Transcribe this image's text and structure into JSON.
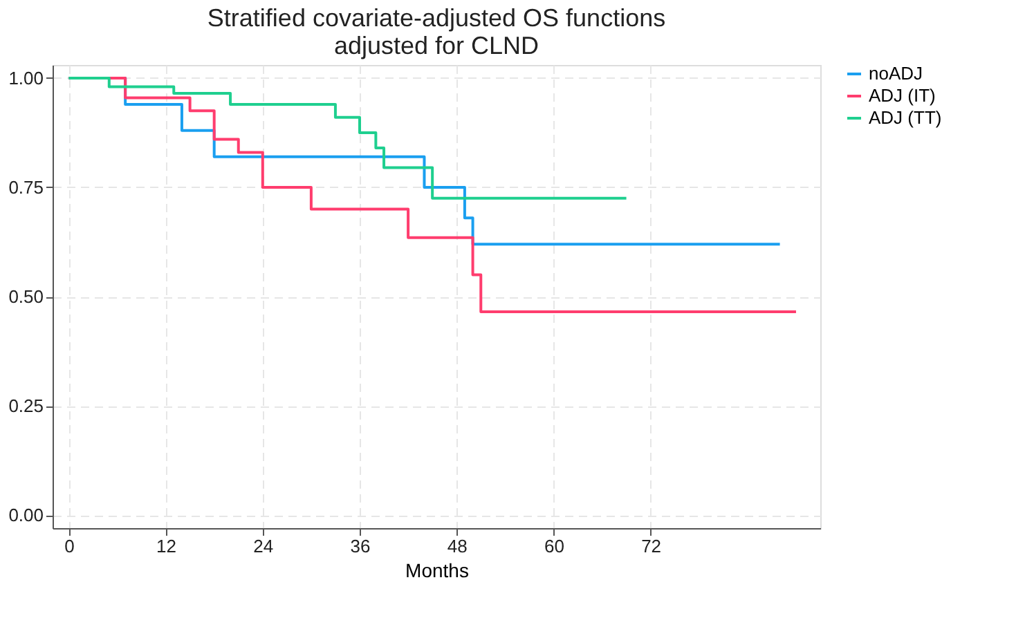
{
  "chart_data": {
    "type": "step",
    "title": [
      "Stratified covariate-adjusted OS functions",
      "adjusted for CLND"
    ],
    "xlabel": "Months",
    "xlim": [
      -2,
      93
    ],
    "xticks": [
      0,
      12,
      24,
      36,
      48,
      60,
      72
    ],
    "ylim": [
      -0.03,
      1.03
    ],
    "yticks": [
      {
        "value": 0,
        "label": "0.00"
      },
      {
        "value": 0.25,
        "label": "0.25"
      },
      {
        "value": 0.5,
        "label": "0.50"
      },
      {
        "value": 0.75,
        "label": "0.75"
      },
      {
        "value": 1,
        "label": "1.00"
      }
    ],
    "grid": true,
    "legend": "right",
    "line_style": "solid",
    "marker": "none",
    "series": [
      {
        "name": "noADJ",
        "color": "#1a9ff0",
        "x": [
          0,
          7,
          14,
          18,
          44,
          49,
          50,
          88
        ],
        "values": [
          1.0,
          0.94,
          0.88,
          0.82,
          0.75,
          0.68,
          0.62,
          0.62
        ]
      },
      {
        "name": "ADJ (IT)",
        "color": "#ff3d6e",
        "x": [
          0,
          7,
          15,
          18,
          21,
          24,
          30,
          42,
          50,
          51,
          90
        ],
        "values": [
          1.0,
          0.955,
          0.925,
          0.86,
          0.83,
          0.75,
          0.7,
          0.635,
          0.55,
          0.465,
          0.465
        ]
      },
      {
        "name": "ADJ (TT)",
        "color": "#1fcf8f",
        "x": [
          0,
          5,
          13,
          20,
          33,
          36,
          38,
          39,
          45,
          69
        ],
        "values": [
          1.0,
          0.98,
          0.965,
          0.94,
          0.91,
          0.875,
          0.84,
          0.795,
          0.725,
          0.725
        ]
      }
    ]
  }
}
